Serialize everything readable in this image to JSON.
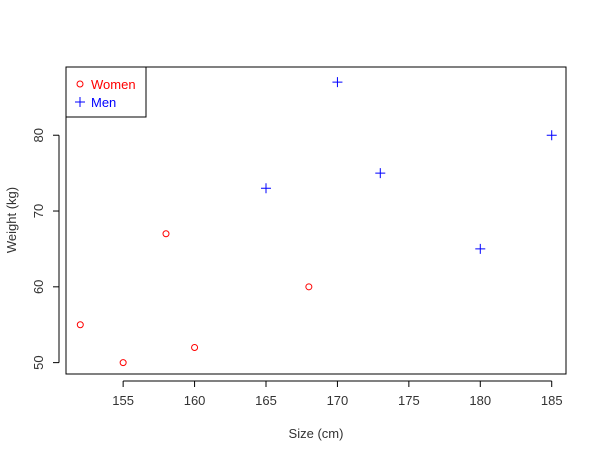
{
  "chart_data": {
    "type": "scatter",
    "title": "",
    "xlabel": "Size (cm)",
    "ylabel": "Weight (kg)",
    "xlim": [
      151,
      186
    ],
    "ylim": [
      48.5,
      89
    ],
    "xticks": [
      155,
      160,
      165,
      170,
      175,
      180,
      185
    ],
    "yticks": [
      50,
      60,
      70,
      80
    ],
    "grid": false,
    "legend_position": "top-left",
    "series": [
      {
        "name": "Women",
        "marker": "circle",
        "color": "#ff0000",
        "x": [
          152,
          155,
          158,
          160,
          168
        ],
        "y": [
          55,
          50,
          67,
          52,
          60
        ]
      },
      {
        "name": "Men",
        "marker": "plus",
        "color": "#0000ff",
        "x": [
          165,
          170,
          173,
          180,
          185
        ],
        "y": [
          73,
          87,
          75,
          65,
          80
        ]
      }
    ]
  }
}
